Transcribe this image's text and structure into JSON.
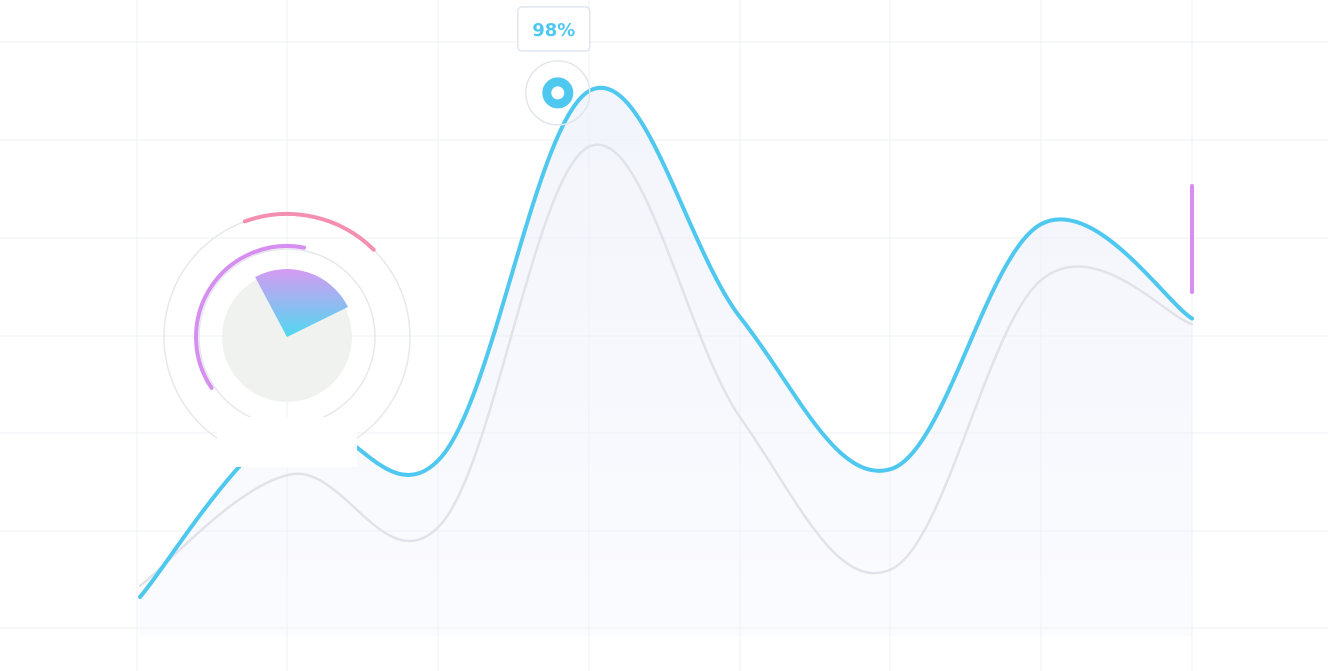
{
  "colors": {
    "background": "#ffffff",
    "grid": "#eef0f3",
    "primary_line": "#4fc8f0",
    "secondary_line": "#e1e3ea",
    "area_fill": "#eef1fb",
    "tooltip_border": "#dfe6ee",
    "tooltip_text": "#4fc8f0",
    "gauge_outer_arc": "#f48fb1",
    "gauge_inner_arc": "#d68ef0",
    "gauge_ring": "#e6e8ee",
    "gauge_disc": "#f0f2ef",
    "gauge_wedge_top": "#d59bf2",
    "gauge_wedge_bottom": "#4fd8f0",
    "marker_bar": "#d68ef0"
  },
  "chart_data": {
    "type": "line",
    "grid": true,
    "x": [
      0,
      1,
      2,
      3,
      4,
      5,
      6,
      7
    ],
    "xlim": [
      0,
      7
    ],
    "ylim": [
      0,
      100
    ],
    "series": [
      {
        "values": [
          7,
          38,
          32,
          98,
          57,
          30,
          74,
          57
        ],
        "style": "primary"
      },
      {
        "values": [
          9,
          29,
          20,
          88,
          39,
          12,
          64,
          56
        ],
        "style": "secondary"
      }
    ],
    "highlight": {
      "x": 2.78,
      "y": 97.5,
      "label": "98%"
    }
  },
  "gauge": {
    "wedge_percent": 18,
    "outer_arc_percent": 18,
    "inner_arc_percent": 52
  },
  "icons": {
    "highlight_point": "ring-dot-icon",
    "gauge": "pie-gauge-icon",
    "marker": "vertical-bar-marker"
  }
}
